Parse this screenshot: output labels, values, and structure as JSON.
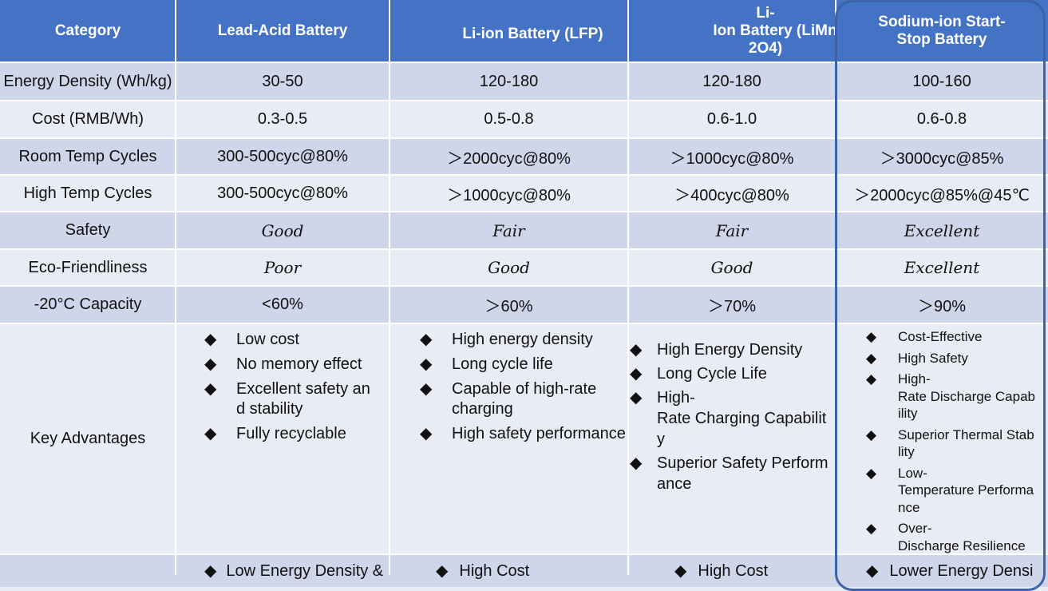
{
  "headers": {
    "category": "Category",
    "lead_acid": "Lead-Acid Battery",
    "lfp": "Li-ion Battery (LFP)",
    "limn_line1": "Li-",
    "limn_line2": "Ion Battery (LiMn",
    "limn_line3": "2O4)",
    "sodium_line1": "Sodium-ion Start-",
    "sodium_line2": "Stop Battery"
  },
  "rows": [
    {
      "category": "Energy Density (Wh/kg)",
      "lead_acid": "30-50",
      "lfp": "120-180",
      "limn": "120-180",
      "sodium": "100-160"
    },
    {
      "category": "Cost (RMB/Wh)",
      "lead_acid": "0.3-0.5",
      "lfp": "0.5-0.8",
      "limn": "0.6-1.0",
      "sodium": "0.6-0.8"
    },
    {
      "category": "Room Temp Cycles",
      "lead_acid": "300-500cyc@80%",
      "lfp": "＞2000cyc@80%",
      "limn": "＞1000cyc@80%",
      "sodium": "＞3000cyc@85%"
    },
    {
      "category": "High Temp Cycles",
      "lead_acid": "300-500cyc@80%",
      "lfp": "＞1000cyc@80%",
      "limn": "＞400cyc@80%",
      "sodium": "＞2000cyc@85%@45℃"
    },
    {
      "category": "Safety",
      "lead_acid": "Good",
      "lfp": "Fair",
      "limn": "Fair",
      "sodium": "Excellent"
    },
    {
      "category": "Eco-Friendliness",
      "lead_acid": "Poor",
      "lfp": "Good",
      "limn": "Good",
      "sodium": "Excellent"
    },
    {
      "category": "-20°C Capacity",
      "lead_acid": "<60%",
      "lfp": "＞60%",
      "limn": "＞70%",
      "sodium": "＞90%"
    }
  ],
  "advantages": {
    "category": "Key Advantages",
    "lead_acid": [
      [
        " Low cost"
      ],
      [
        "No memory effect"
      ],
      [
        "Excellent safety an",
        "d stability"
      ],
      [
        "Fully recyclable"
      ]
    ],
    "lfp": [
      [
        "High energy density"
      ],
      [
        "Long cycle life"
      ],
      [
        "Capable of high-rate",
        "charging"
      ],
      [
        "High safety performance"
      ]
    ],
    "limn": [
      [
        "High Energy Density"
      ],
      [
        "Long Cycle Life"
      ],
      [
        "High-",
        "Rate Charging Capabilit",
        "y"
      ],
      [
        "Superior Safety Perform",
        "ance"
      ]
    ],
    "sodium": [
      [
        "Cost-Effective"
      ],
      [
        "High Safety"
      ],
      [
        "High-",
        "Rate Discharge Capab",
        "ility"
      ],
      [
        "Superior Thermal Stab",
        "lity"
      ],
      [
        "Low-",
        "Temperature Performa",
        "nce"
      ],
      [
        "Over-",
        "Discharge Resilience"
      ]
    ]
  },
  "disadvantages": {
    "lead_acid": "Low Energy Density &",
    "lfp": "High Cost",
    "limn": "High Cost",
    "sodium": "Lower Energy Densi"
  },
  "bullet": "◆",
  "colors": {
    "header_bg": "#4472c4",
    "row_dark": "#cfd6ea",
    "row_light": "#e9ecf5",
    "highlight_border": "#3e62a8"
  }
}
